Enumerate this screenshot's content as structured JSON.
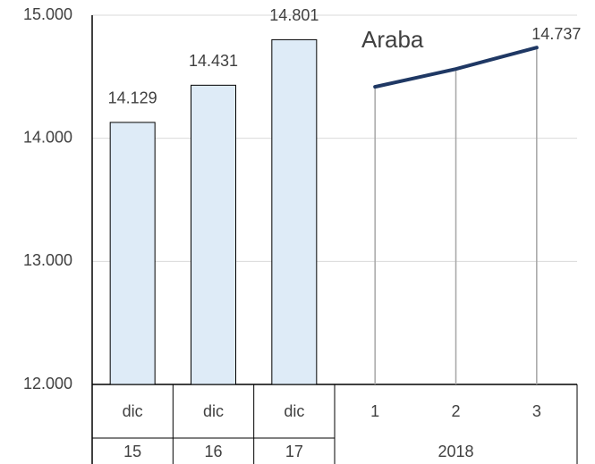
{
  "chart_data": {
    "type": "bar",
    "categories": [
      "dic",
      "dic",
      "dic",
      "1",
      "2",
      "3"
    ],
    "category_groups": [
      {
        "label": "15",
        "span": 1
      },
      {
        "label": "16",
        "span": 1
      },
      {
        "label": "17",
        "span": 1
      },
      {
        "label": "2018",
        "span": 3
      }
    ],
    "series": [
      {
        "type": "bar",
        "color": "#deebf7",
        "values": [
          14129,
          14431,
          14801,
          null,
          null,
          null
        ],
        "value_labels": [
          "14.129",
          "14.431",
          "14.801",
          null,
          null,
          null
        ]
      },
      {
        "type": "line",
        "name": "Araba",
        "color": "#1f3864",
        "values": [
          null,
          null,
          null,
          14418,
          14563,
          14737
        ],
        "value_labels": [
          null,
          null,
          null,
          null,
          null,
          "14.737"
        ]
      }
    ],
    "ylim": [
      12000,
      15000
    ],
    "yticks": [
      {
        "value": 12000,
        "label": "12.000"
      },
      {
        "value": 13000,
        "label": "13.000"
      },
      {
        "value": 14000,
        "label": "14.000"
      },
      {
        "value": 15000,
        "label": "15.000"
      }
    ],
    "grid": true
  }
}
